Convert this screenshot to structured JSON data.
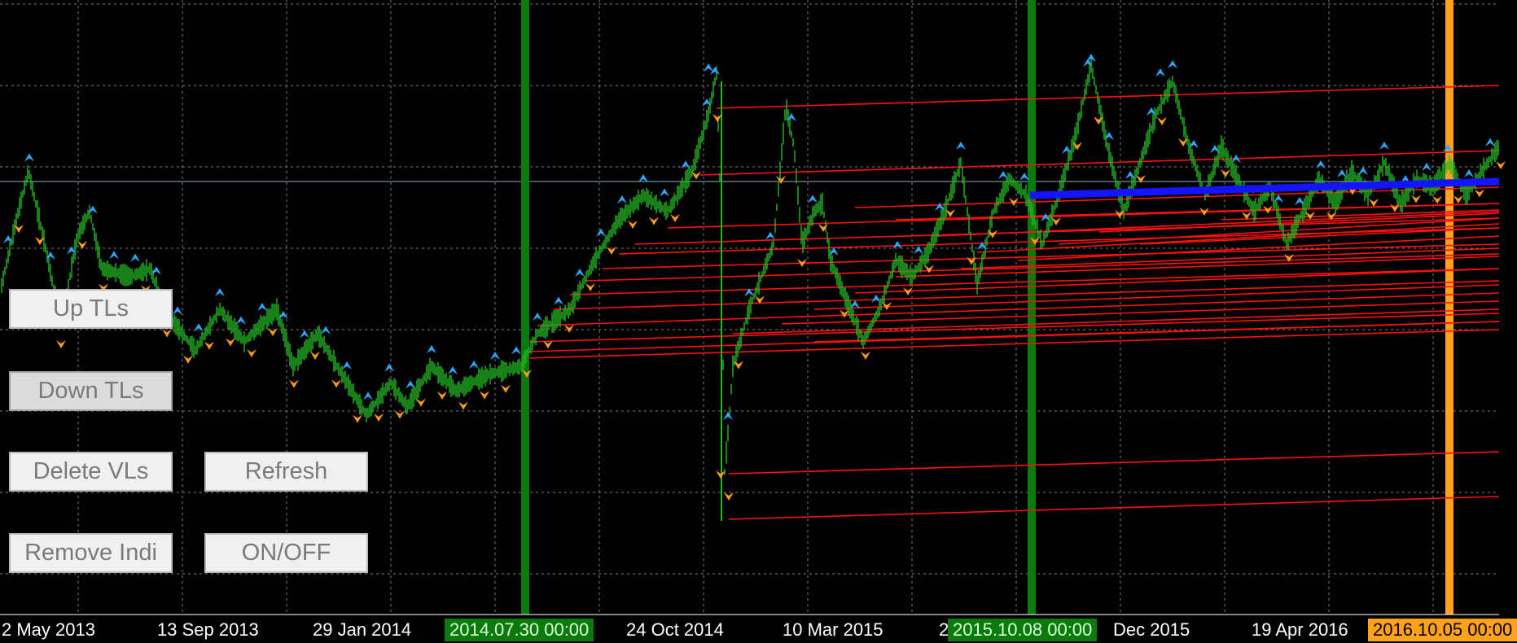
{
  "buttons": {
    "up_tls": "Up TLs",
    "down_tls": "Down TLs",
    "delete_vls": "Delete VLs",
    "refresh": "Refresh",
    "remove_indi": "Remove Indi",
    "on_off": "ON/OFF"
  },
  "time_axis": {
    "labels": [
      "2 May 2013",
      "13 Sep 2013",
      "29 Jan 2014",
      "24 Oct 2014",
      "10 Mar 2015",
      "2",
      "Dec 2015",
      "19 Apr 2016"
    ]
  },
  "vertical_lines": [
    {
      "label": "2014.07.30 00:00",
      "color": "#0a7a0a"
    },
    {
      "label": "2015.10.08 00:00",
      "color": "#0a7a0a"
    },
    {
      "label": "2016.10.05 00:00",
      "color": "#ffa21a"
    }
  ],
  "colors": {
    "background": "#000000",
    "grid": "#7f7f7f",
    "price_bars": "#22b822",
    "trendline": "#ff1010",
    "highlight_line": "#1414ff",
    "up_arrow": "#2aa8ff",
    "down_arrow": "#ff9a1a"
  }
}
